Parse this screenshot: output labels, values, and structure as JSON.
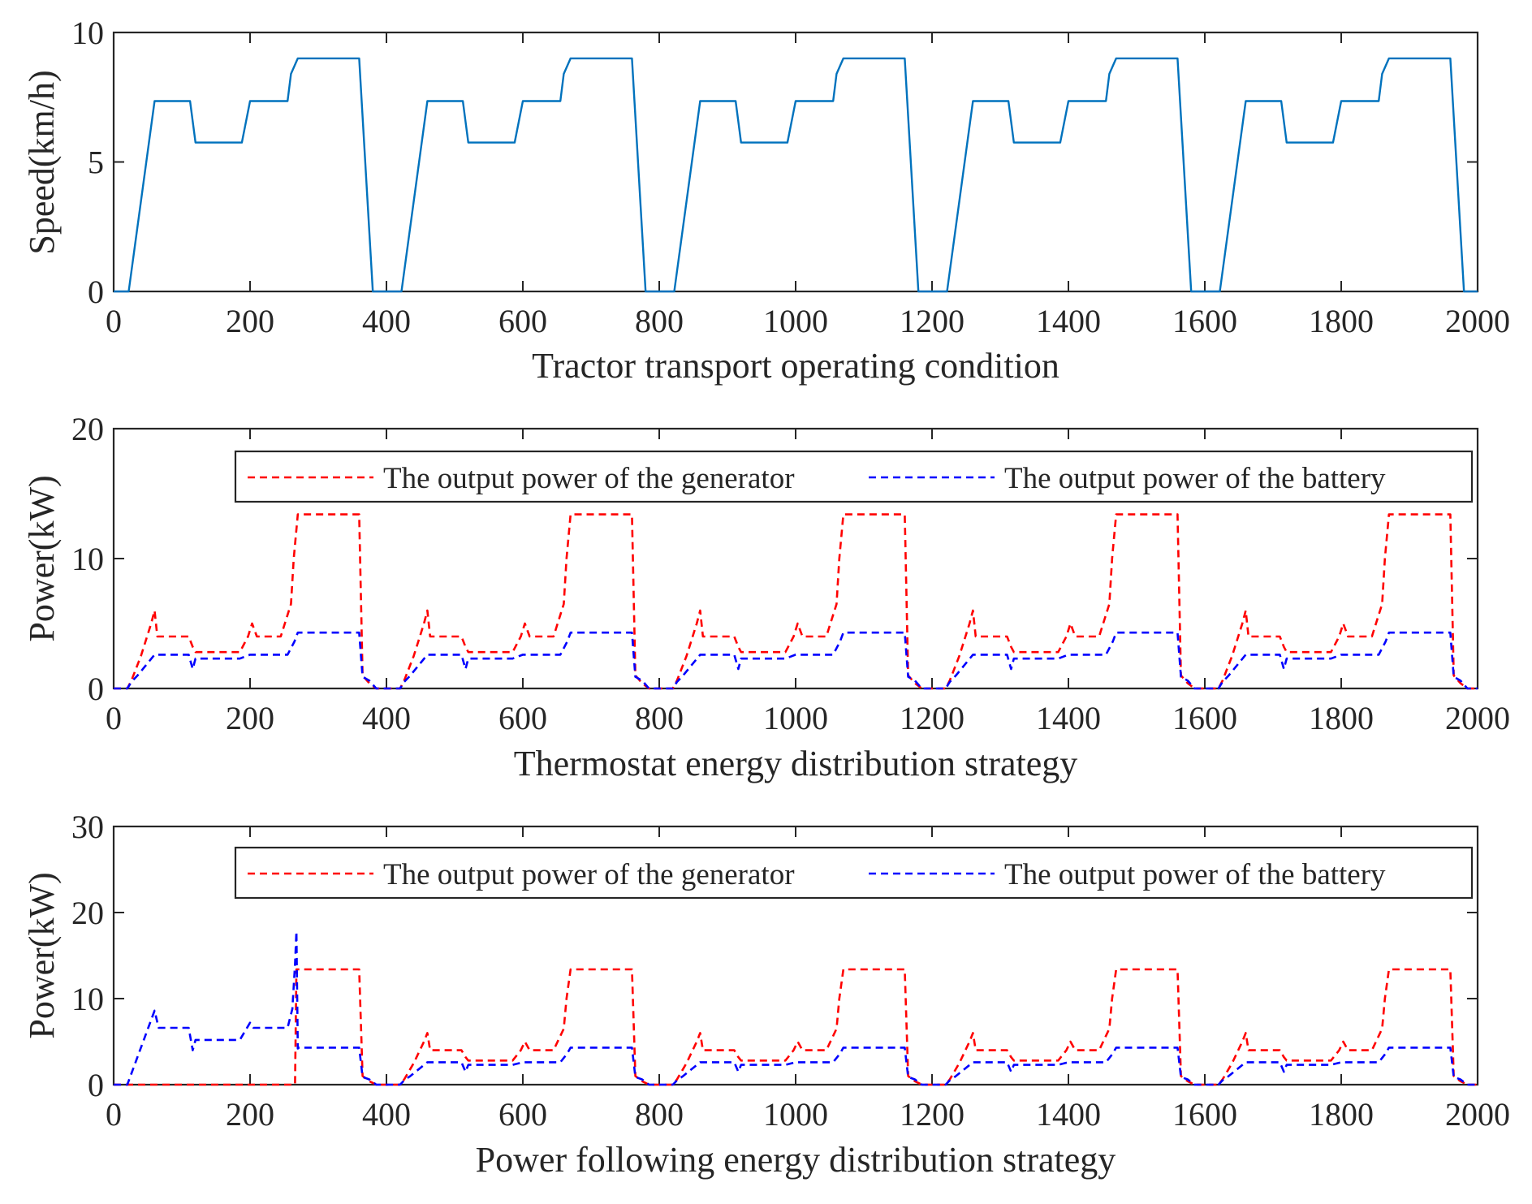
{
  "chart_data": [
    {
      "type": "line",
      "title": "",
      "xlabel": "Tractor transport operating condition",
      "ylabel": "Speed(km/h)",
      "xlim": [
        0,
        2000
      ],
      "ylim": [
        0,
        10
      ],
      "xticks": [
        0,
        200,
        400,
        600,
        800,
        1000,
        1200,
        1400,
        1600,
        1800,
        2000
      ],
      "yticks": [
        0,
        5,
        10
      ],
      "xtick_labels": [
        "0",
        "200",
        "400",
        "600",
        "800",
        "1000",
        "1200",
        "1400",
        "1600",
        "1800",
        "2000"
      ],
      "ytick_labels": [
        "0",
        "5",
        "10"
      ],
      "grid": false,
      "legend": null,
      "series": [
        {
          "name": "Speed",
          "color": "#0072BD",
          "style": "solid",
          "period": 400,
          "repeat": 5,
          "x": [
            0,
            22,
            60,
            112,
            120,
            188,
            200,
            255,
            260,
            270,
            355,
            360,
            380,
            400
          ],
          "y": [
            0,
            0,
            7.35,
            7.35,
            5.75,
            5.75,
            7.35,
            7.35,
            8.4,
            9.0,
            9.0,
            9.0,
            0,
            0
          ]
        }
      ]
    },
    {
      "type": "line",
      "title": "",
      "xlabel": "Thermostat energy distribution strategy",
      "ylabel": "Power(kW)",
      "xlim": [
        0,
        2000
      ],
      "ylim": [
        0,
        20
      ],
      "xticks": [
        0,
        200,
        400,
        600,
        800,
        1000,
        1200,
        1400,
        1600,
        1800,
        2000
      ],
      "yticks": [
        0,
        10,
        20
      ],
      "xtick_labels": [
        "0",
        "200",
        "400",
        "600",
        "800",
        "1000",
        "1200",
        "1400",
        "1600",
        "1800",
        "2000"
      ],
      "ytick_labels": [
        "0",
        "10",
        "20"
      ],
      "grid": false,
      "legend": {
        "location": "top-right",
        "orientation": "horizontal",
        "entries": [
          "The output power of the generator",
          "The output power of the battery"
        ]
      },
      "series": [
        {
          "name": "The output power of the generator",
          "color": "#FF0000",
          "style": "dashed",
          "period": 400,
          "repeat": 5,
          "x": [
            0,
            20,
            26,
            40,
            55,
            60,
            64,
            110,
            116,
            120,
            185,
            197,
            203,
            210,
            245,
            260,
            264,
            270,
            360,
            365,
            375,
            385,
            400
          ],
          "y": [
            0,
            0,
            0.6,
            2.5,
            5.0,
            6.0,
            4.0,
            4.0,
            3.2,
            2.8,
            2.8,
            4.0,
            5.0,
            4.0,
            4.0,
            6.5,
            10.0,
            13.4,
            13.4,
            1.0,
            0.4,
            0,
            0
          ]
        },
        {
          "name": "The output power of the battery",
          "color": "#0000FF",
          "style": "dashed",
          "period": 400,
          "repeat": 5,
          "x": [
            0,
            20,
            26,
            35,
            60,
            110,
            116,
            120,
            185,
            200,
            255,
            265,
            270,
            360,
            365,
            375,
            385,
            400
          ],
          "y": [
            0,
            0,
            0.5,
            1.0,
            2.6,
            2.6,
            1.5,
            2.3,
            2.3,
            2.6,
            2.6,
            3.6,
            4.3,
            4.3,
            0.9,
            0.6,
            0,
            0
          ]
        }
      ]
    },
    {
      "type": "line",
      "title": "",
      "xlabel": "Power following energy distribution strategy",
      "ylabel": "Power(kW)",
      "xlim": [
        0,
        2000
      ],
      "ylim": [
        0,
        30
      ],
      "xticks": [
        0,
        200,
        400,
        600,
        800,
        1000,
        1200,
        1400,
        1600,
        1800,
        2000
      ],
      "yticks": [
        0,
        10,
        20,
        30
      ],
      "xtick_labels": [
        "0",
        "200",
        "400",
        "600",
        "800",
        "1000",
        "1200",
        "1400",
        "1600",
        "1800",
        "2000"
      ],
      "ytick_labels": [
        "0",
        "10",
        "20",
        "30"
      ],
      "grid": false,
      "legend": {
        "location": "top-right",
        "orientation": "horizontal",
        "entries": [
          "The output power of the generator",
          "The output power of the battery"
        ]
      },
      "series": [
        {
          "name": "The output power of the generator",
          "color": "#FF0000",
          "style": "dashed",
          "x": [
            0,
            266,
            268,
            272,
            360,
            365,
            375,
            385,
            420,
            426,
            440,
            455,
            460,
            464,
            510,
            516,
            520,
            585,
            597,
            603,
            610,
            645,
            660,
            664,
            670,
            760,
            765,
            775,
            785,
            820,
            826,
            840,
            855,
            860,
            864,
            910,
            916,
            920,
            985,
            997,
            1003,
            1010,
            1045,
            1060,
            1064,
            1070,
            1160,
            1165,
            1175,
            1185,
            1220,
            1226,
            1240,
            1255,
            1260,
            1264,
            1310,
            1316,
            1320,
            1385,
            1397,
            1403,
            1410,
            1445,
            1460,
            1464,
            1470,
            1560,
            1565,
            1575,
            1585,
            1620,
            1626,
            1640,
            1655,
            1660,
            1664,
            1710,
            1716,
            1720,
            1785,
            1797,
            1803,
            1810,
            1845,
            1860,
            1864,
            1870,
            1960,
            1965,
            1975,
            1985,
            2000
          ],
          "y": [
            0,
            0,
            13.4,
            13.4,
            13.4,
            1.0,
            0.4,
            0,
            0,
            0.6,
            2.5,
            5.0,
            6.0,
            4.0,
            4.0,
            3.2,
            2.8,
            2.8,
            4.0,
            5.0,
            4.0,
            4.0,
            6.5,
            10.0,
            13.4,
            13.4,
            1.0,
            0.4,
            0,
            0,
            0.6,
            2.5,
            5.0,
            6.0,
            4.0,
            4.0,
            3.2,
            2.8,
            2.8,
            4.0,
            5.0,
            4.0,
            4.0,
            6.5,
            10.0,
            13.4,
            13.4,
            1.0,
            0.4,
            0,
            0,
            0.6,
            2.5,
            5.0,
            6.0,
            4.0,
            4.0,
            3.2,
            2.8,
            2.8,
            4.0,
            5.0,
            4.0,
            4.0,
            6.5,
            10.0,
            13.4,
            13.4,
            1.0,
            0.4,
            0,
            0,
            0.6,
            2.5,
            5.0,
            6.0,
            4.0,
            4.0,
            3.2,
            2.8,
            2.8,
            4.0,
            5.0,
            4.0,
            4.0,
            6.5,
            10.0,
            13.4,
            13.4,
            1.0,
            0.4,
            0,
            0
          ]
        },
        {
          "name": "The output power of the battery",
          "color": "#0000FF",
          "style": "dashed",
          "x": [
            0,
            20,
            60,
            66,
            110,
            116,
            120,
            185,
            200,
            205,
            210,
            255,
            262,
            266,
            268,
            270,
            272,
            360,
            365,
            375,
            385,
            420,
            426,
            435,
            460,
            510,
            516,
            520,
            585,
            600,
            655,
            665,
            670,
            760,
            765,
            775,
            785,
            820,
            826,
            835,
            860,
            910,
            916,
            920,
            985,
            1000,
            1055,
            1065,
            1070,
            1160,
            1165,
            1175,
            1185,
            1220,
            1226,
            1235,
            1260,
            1310,
            1316,
            1320,
            1385,
            1400,
            1455,
            1465,
            1470,
            1560,
            1565,
            1575,
            1585,
            1620,
            1626,
            1635,
            1660,
            1710,
            1716,
            1720,
            1785,
            1800,
            1855,
            1865,
            1870,
            1960,
            1965,
            1975,
            1985,
            2000
          ],
          "y": [
            0,
            0,
            8.6,
            6.6,
            6.6,
            4.0,
            5.2,
            5.2,
            7.2,
            6.6,
            6.6,
            6.6,
            8.8,
            14.0,
            17.8,
            4.2,
            4.3,
            4.3,
            0.9,
            0.6,
            0,
            0,
            0.5,
            1.0,
            2.6,
            2.6,
            1.5,
            2.3,
            2.3,
            2.6,
            2.6,
            3.6,
            4.3,
            4.3,
            0.9,
            0.6,
            0,
            0,
            0.5,
            1.0,
            2.6,
            2.6,
            1.5,
            2.3,
            2.3,
            2.6,
            2.6,
            3.6,
            4.3,
            4.3,
            0.9,
            0.6,
            0,
            0,
            0.5,
            1.0,
            2.6,
            2.6,
            1.5,
            2.3,
            2.3,
            2.6,
            2.6,
            3.6,
            4.3,
            4.3,
            0.9,
            0.6,
            0,
            0,
            0.5,
            1.0,
            2.6,
            2.6,
            1.5,
            2.3,
            2.3,
            2.6,
            2.6,
            3.6,
            4.3,
            4.3,
            0.9,
            0.6,
            0,
            0
          ]
        }
      ]
    }
  ]
}
